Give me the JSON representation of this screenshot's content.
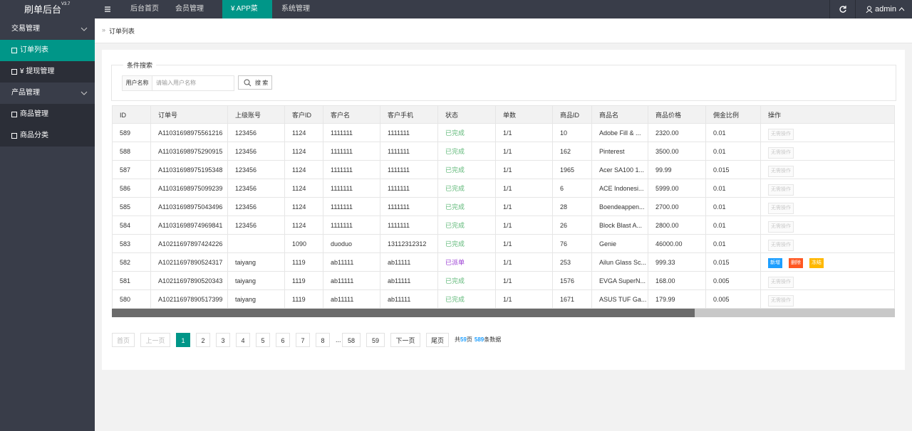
{
  "header": {
    "logo": "刷单后台",
    "version": "V3.7",
    "nav": [
      "后台首页",
      "会员管理",
      "¥ APP菜单",
      "系统管理"
    ],
    "active_nav": 2,
    "user": "admin"
  },
  "sidebar": [
    {
      "label": "交易管理",
      "group": true
    },
    {
      "label": "订单列表",
      "active": true
    },
    {
      "label": "¥ 提现管理"
    },
    {
      "label": "产品管理",
      "group": true
    },
    {
      "label": "商品管理"
    },
    {
      "label": "商品分类"
    }
  ],
  "breadcrumb": "订单列表",
  "search": {
    "legend": "条件搜索",
    "field_label": "用户名称",
    "placeholder": "请输入用户名称",
    "button": "搜 索"
  },
  "table": {
    "columns": [
      "ID",
      "订单号",
      "上级账号",
      "客户ID",
      "客户名",
      "客户手机",
      "状态",
      "单数",
      "商品ID",
      "商品名",
      "商品价格",
      "佣金比例",
      "操作"
    ],
    "rows": [
      {
        "cells": [
          "589",
          "A11031698975561216",
          "123456",
          "1124",
          "1111111",
          "1111111",
          "已完成",
          "1/1",
          "10",
          "Adobe Fill & ...",
          "2320.00",
          "0.01"
        ],
        "status_color": "#5FB878",
        "actions": [
          "无需操作"
        ]
      },
      {
        "cells": [
          "588",
          "A11031698975290915",
          "123456",
          "1124",
          "1111111",
          "1111111",
          "已完成",
          "1/1",
          "162",
          "Pinterest",
          "3500.00",
          "0.01"
        ],
        "status_color": "#5FB878",
        "actions": [
          "无需操作"
        ]
      },
      {
        "cells": [
          "587",
          "A11031698975195348",
          "123456",
          "1124",
          "1111111",
          "1111111",
          "已完成",
          "1/1",
          "1965",
          "Acer SA100 1...",
          "99.99",
          "0.015"
        ],
        "status_color": "#5FB878",
        "actions": [
          "无需操作"
        ]
      },
      {
        "cells": [
          "586",
          "A11031698975099239",
          "123456",
          "1124",
          "1111111",
          "1111111",
          "已完成",
          "1/1",
          "6",
          "ACE Indonesi...",
          "5999.00",
          "0.01"
        ],
        "status_color": "#5FB878",
        "actions": [
          "无需操作"
        ]
      },
      {
        "cells": [
          "585",
          "A11031698975043496",
          "123456",
          "1124",
          "1111111",
          "1111111",
          "已完成",
          "1/1",
          "28",
          "Boendeappen...",
          "2700.00",
          "0.01"
        ],
        "status_color": "#5FB878",
        "actions": [
          "无需操作"
        ]
      },
      {
        "cells": [
          "584",
          "A11031698974969841",
          "123456",
          "1124",
          "1111111",
          "1111111",
          "已完成",
          "1/1",
          "26",
          "Block Blast A...",
          "2800.00",
          "0.01"
        ],
        "status_color": "#5FB878",
        "actions": [
          "无需操作"
        ]
      },
      {
        "cells": [
          "583",
          "A10211697897424226",
          "",
          "1090",
          "duoduo",
          "13112312312",
          "已完成",
          "1/1",
          "76",
          "Genie",
          "46000.00",
          "0.01"
        ],
        "status_color": "#5FB878",
        "actions": [
          "无需操作"
        ]
      },
      {
        "cells": [
          "582",
          "A10211697890524317",
          "taiyang",
          "1119",
          "ab11111",
          "ab11111",
          "已派单",
          "1/1",
          "253",
          "Ailun Glass Sc...",
          "999.33",
          "0.015"
        ],
        "status_color": "#9b3fd3",
        "actions": [
          "新增",
          "删除",
          "冻结"
        ]
      },
      {
        "cells": [
          "581",
          "A10211697890520343",
          "taiyang",
          "1119",
          "ab11111",
          "ab11111",
          "已完成",
          "1/1",
          "1576",
          "EVGA SuperN...",
          "168.00",
          "0.005"
        ],
        "status_color": "#5FB878",
        "actions": [
          "无需操作"
        ]
      },
      {
        "cells": [
          "580",
          "A10211697890517399",
          "taiyang",
          "1119",
          "ab11111",
          "ab11111",
          "已完成",
          "1/1",
          "1671",
          "ASUS TUF Ga...",
          "179.99",
          "0.005"
        ],
        "status_color": "#5FB878",
        "actions": [
          "无需操作"
        ]
      }
    ],
    "action_colors": [
      "#1E9FFF",
      "#FF5722",
      "#FFB800"
    ]
  },
  "pagination": {
    "first": "首页",
    "prev": "上一页",
    "pages": [
      "1",
      "2",
      "3",
      "4",
      "5",
      "6",
      "7",
      "8",
      "...",
      "58",
      "59"
    ],
    "current": 0,
    "next": "下一页",
    "last": "尾页",
    "summary": {
      "prefix": "共",
      "pages": "59",
      "mid": "页",
      "count": "589",
      "suffix": "条数据"
    }
  }
}
